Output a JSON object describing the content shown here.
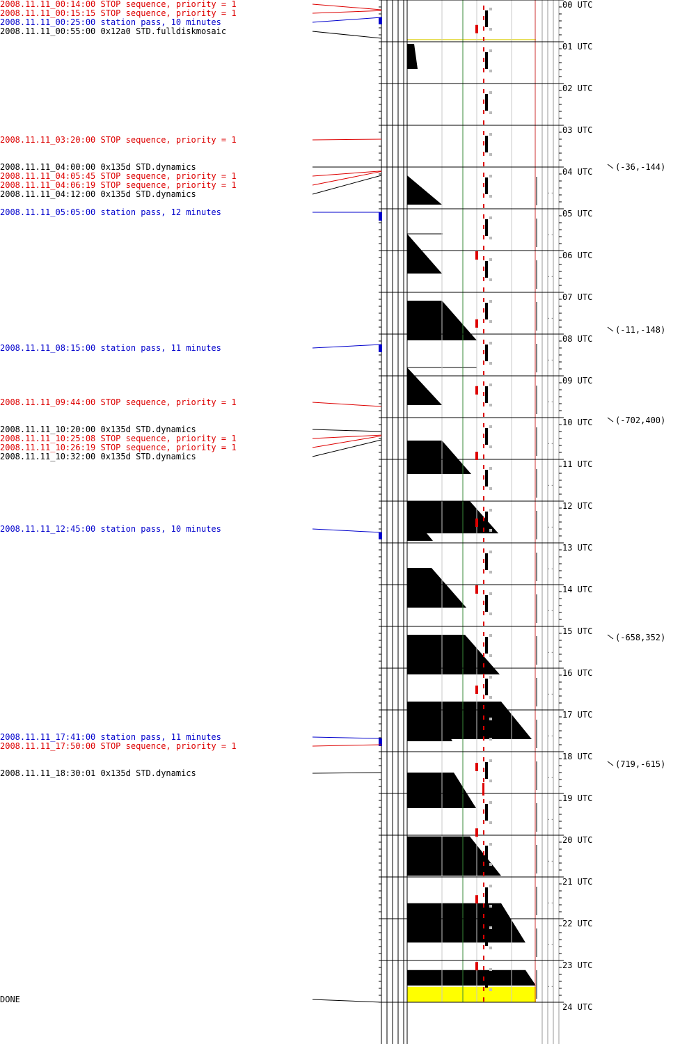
{
  "colors": {
    "stop": "#dd0000",
    "station": "#0000cc",
    "command": "#000000",
    "grid": "#000000",
    "gray_grid": "#c8c8c8",
    "green_grid": "#3a8a3a",
    "red_border": "#cc3333",
    "yellow": "#ffff00"
  },
  "hour_labels": [
    "00 UTC",
    "01 UTC",
    "02 UTC",
    "03 UTC",
    "04 UTC",
    "05 UTC",
    "06 UTC",
    "07 UTC",
    "08 UTC",
    "09 UTC",
    "10 UTC",
    "11 UTC",
    "12 UTC",
    "13 UTC",
    "14 UTC",
    "15 UTC",
    "16 UTC",
    "17 UTC",
    "18 UTC",
    "19 UTC",
    "20 UTC",
    "21 UTC",
    "22 UTC",
    "23 UTC",
    "24 UTC"
  ],
  "events": [
    {
      "text": "2008.11.11_00:14:00 STOP sequence, priority = 1",
      "kind": "stop",
      "time": "00:14:00"
    },
    {
      "text": "2008.11.11_00:15:15 STOP sequence, priority = 1",
      "kind": "stop",
      "time": "00:15:15"
    },
    {
      "text": "2008.11.11_00:25:00 station pass, 10 minutes",
      "kind": "station",
      "time": "00:25:00",
      "duration_min": 10
    },
    {
      "text": "2008.11.11_00:55:00 0x12a0 STD.fulldiskmosaic",
      "kind": "command",
      "time": "00:55:00"
    },
    {
      "text": "2008.11.11_03:20:00 STOP sequence, priority = 1",
      "kind": "stop",
      "time": "03:20:00"
    },
    {
      "text": "2008.11.11_04:00:00 0x135d STD.dynamics",
      "kind": "command",
      "time": "04:00:00"
    },
    {
      "text": "2008.11.11_04:05:45 STOP sequence, priority = 1",
      "kind": "stop",
      "time": "04:05:45"
    },
    {
      "text": "2008.11.11_04:06:19 STOP sequence, priority = 1",
      "kind": "stop",
      "time": "04:06:19"
    },
    {
      "text": "2008.11.11_04:12:00 0x135d STD.dynamics",
      "kind": "command",
      "time": "04:12:00"
    },
    {
      "text": "2008.11.11_05:05:00 station pass, 12 minutes",
      "kind": "station",
      "time": "05:05:00",
      "duration_min": 12
    },
    {
      "text": "2008.11.11_08:15:00 station pass, 11 minutes",
      "kind": "station",
      "time": "08:15:00",
      "duration_min": 11
    },
    {
      "text": "2008.11.11_09:44:00 STOP sequence, priority = 1",
      "kind": "stop",
      "time": "09:44:00"
    },
    {
      "text": "2008.11.11_10:20:00 0x135d STD.dynamics",
      "kind": "command",
      "time": "10:20:00"
    },
    {
      "text": "2008.11.11_10:25:08 STOP sequence, priority = 1",
      "kind": "stop",
      "time": "10:25:08"
    },
    {
      "text": "2008.11.11_10:26:19 STOP sequence, priority = 1",
      "kind": "stop",
      "time": "10:26:19"
    },
    {
      "text": "2008.11.11_10:32:00 0x135d STD.dynamics",
      "kind": "command",
      "time": "10:32:00"
    },
    {
      "text": "2008.11.11_12:45:00 station pass, 10 minutes",
      "kind": "station",
      "time": "12:45:00",
      "duration_min": 10
    },
    {
      "text": "2008.11.11_17:41:00 station pass, 11 minutes",
      "kind": "station",
      "time": "17:41:00",
      "duration_min": 11
    },
    {
      "text": "2008.11.11_17:50:00 STOP sequence, priority = 1",
      "kind": "stop",
      "time": "17:50:00"
    },
    {
      "text": "2008.11.11_18:30:01 0x135d STD.dynamics",
      "kind": "command",
      "time": "18:30:01"
    },
    {
      "text": "DONE",
      "kind": "command",
      "time": "24:00:00"
    }
  ],
  "pointings": [
    {
      "text": "(-36,-144)",
      "time": "04:00"
    },
    {
      "text": "(-11,-148)",
      "time": "07:55"
    },
    {
      "text": "(-702,400)",
      "time": "10:00"
    },
    {
      "text": "(-658,352)",
      "time": "15:15"
    },
    {
      "text": "(719,-615)",
      "time": "18:20"
    }
  ]
}
